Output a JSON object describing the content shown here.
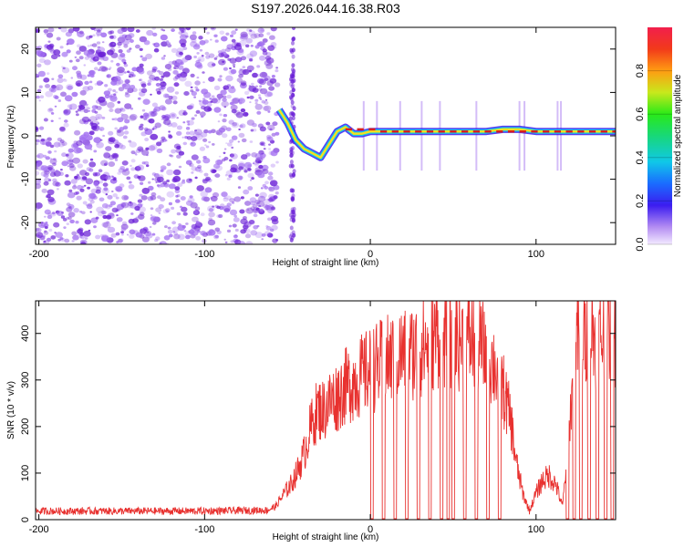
{
  "title": "S197.2026.044.16.38.R03",
  "colors": {
    "snr_line": "#e8312f",
    "scatter_low": "#a06cf0",
    "scatter_high": "#6a1fd6",
    "ridge": "#d81e1e"
  },
  "chart_data": [
    {
      "type": "heatmap",
      "title": "",
      "xlabel": "Height of straight line (km)",
      "ylabel": "Frequency (Hz)",
      "xlim": [
        -202,
        148
      ],
      "ylim": [
        -25,
        25
      ],
      "xticks": [
        -200,
        -100,
        0,
        100
      ],
      "xtick_labels": [
        "-200",
        "-100",
        "0",
        "100"
      ],
      "yticks": [
        -20,
        -10,
        0,
        10,
        20
      ],
      "ytick_labels": [
        "-20",
        "-10",
        "0",
        "10",
        "20"
      ],
      "noise_region_km": [
        -202,
        -56
      ],
      "noise_strip_km": -47,
      "ridge": {
        "x": [
          -55,
          -50,
          -45,
          -40,
          -35,
          -30,
          -25,
          -20,
          -15,
          -10,
          -5,
          0,
          10,
          20,
          30,
          40,
          50,
          60,
          70,
          80,
          90,
          100,
          110,
          120,
          130,
          140,
          148
        ],
        "freq": [
          6,
          3,
          -1,
          -3,
          -4,
          -5,
          -2,
          1,
          2,
          0.5,
          0.5,
          1,
          1,
          1,
          1,
          1,
          1,
          1,
          1,
          1.5,
          1.5,
          1,
          1,
          1,
          1,
          1,
          1
        ]
      },
      "side_lines_km": [
        -4,
        4,
        18,
        31,
        42,
        64,
        90,
        93,
        113,
        115
      ],
      "colorbar": {
        "label": "Normalized spectral amplitude",
        "range": [
          0,
          1
        ],
        "ticks": [
          0.0,
          0.2,
          0.4,
          0.6,
          0.8
        ],
        "tick_labels": [
          "0.0",
          "0.2",
          "0.4",
          "0.6",
          "0.8"
        ]
      }
    },
    {
      "type": "line",
      "title": "",
      "xlabel": "Height of straight line (km)",
      "ylabel": "SNR (10 * v/v)",
      "xlim": [
        -202,
        148
      ],
      "ylim": [
        0,
        470
      ],
      "xticks": [
        -200,
        -100,
        0,
        100
      ],
      "xtick_labels": [
        "-200",
        "-100",
        "0",
        "100"
      ],
      "yticks": [
        0,
        100,
        200,
        300,
        400
      ],
      "ytick_labels": [
        "0",
        "100",
        "200",
        "300",
        "400"
      ],
      "series": [
        {
          "name": "SNR",
          "x": [
            -202,
            -150,
            -100,
            -62,
            -57,
            -52,
            -48,
            -44,
            -40,
            -36,
            -32,
            -28,
            -24,
            -20,
            -16,
            -12,
            -8,
            -4,
            0,
            5,
            10,
            15,
            20,
            25,
            30,
            35,
            40,
            45,
            50,
            55,
            60,
            65,
            70,
            75,
            80,
            85,
            88,
            92,
            96,
            100,
            104,
            108,
            112,
            116,
            120,
            124,
            130,
            136,
            142,
            148
          ],
          "values": [
            20,
            20,
            20,
            22,
            30,
            60,
            80,
            110,
            150,
            210,
            250,
            250,
            270,
            280,
            300,
            310,
            320,
            330,
            340,
            350,
            360,
            370,
            380,
            380,
            390,
            400,
            420,
            420,
            420,
            410,
            410,
            400,
            380,
            350,
            300,
            220,
            130,
            60,
            20,
            60,
            90,
            100,
            80,
            30,
            200,
            420,
            420,
            420,
            420,
            420
          ]
        }
      ],
      "dropouts_km": [
        1,
        8,
        15,
        22,
        29,
        36,
        43,
        47,
        50,
        57,
        64,
        71,
        78,
        119,
        123,
        127,
        132,
        137,
        142,
        146
      ]
    }
  ]
}
